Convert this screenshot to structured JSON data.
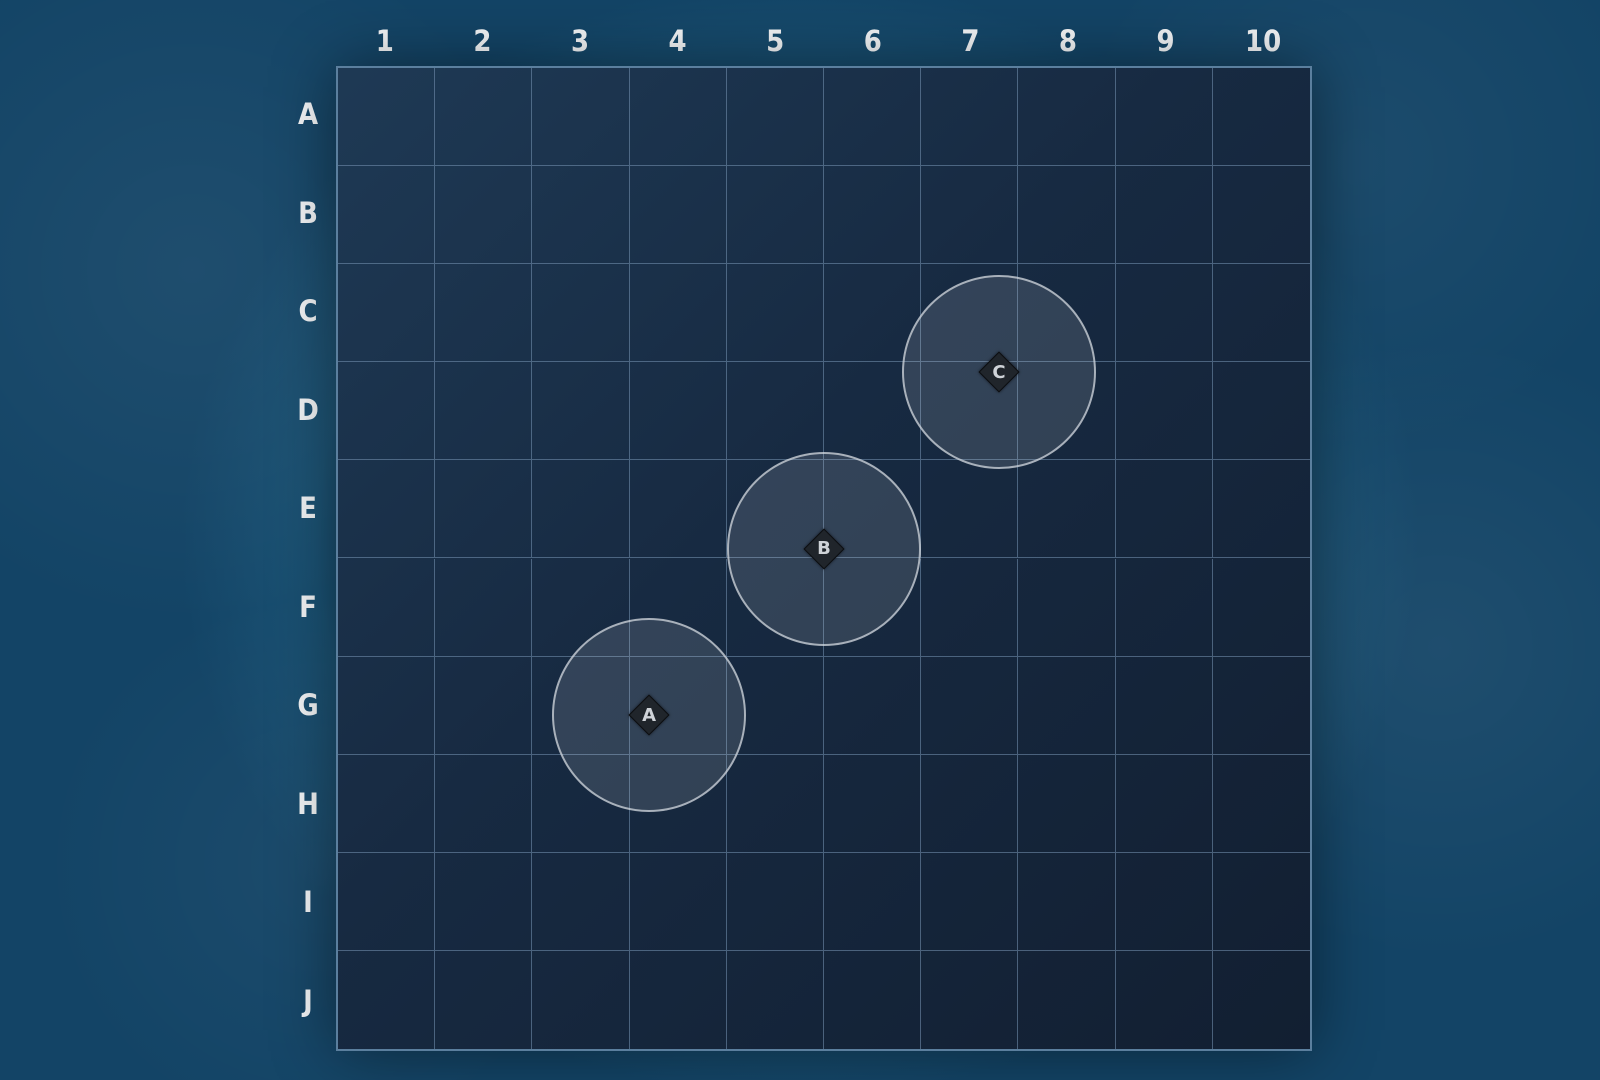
{
  "board": {
    "columns": [
      "1",
      "2",
      "3",
      "4",
      "5",
      "6",
      "7",
      "8",
      "9",
      "10"
    ],
    "rows": [
      "A",
      "B",
      "C",
      "D",
      "E",
      "F",
      "G",
      "H",
      "I",
      "J"
    ]
  },
  "markers": [
    {
      "label": "A",
      "col": 3.2,
      "row": 6.6
    },
    {
      "label": "B",
      "col": 5.0,
      "row": 4.9
    },
    {
      "label": "C",
      "col": 6.8,
      "row": 3.1
    }
  ],
  "colors": {
    "ocean": "#134466",
    "board": "#172a42",
    "grid_line": "#7896b4",
    "label_text": "#f4f6f8",
    "marker_fill": "#20252b"
  }
}
